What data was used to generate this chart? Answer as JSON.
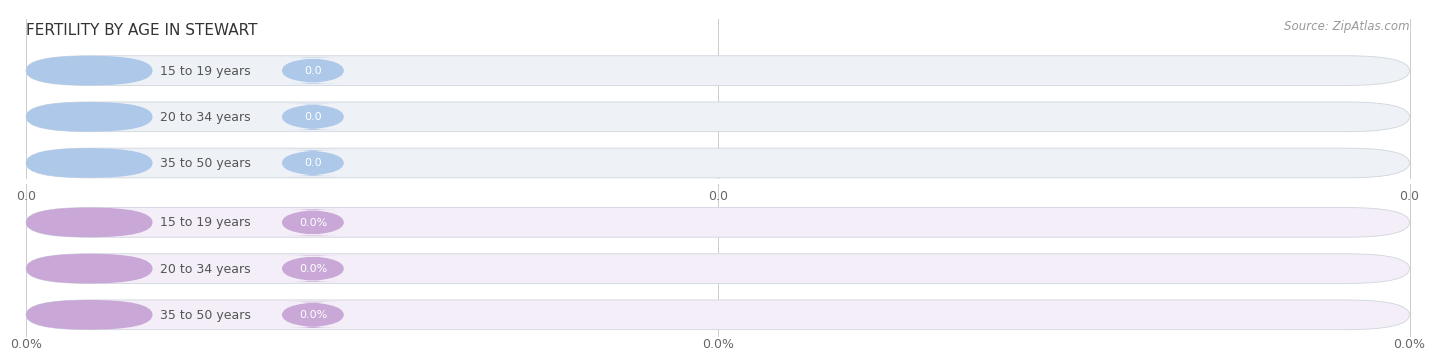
{
  "title": "FERTILITY BY AGE IN STEWART",
  "source": "Source: ZipAtlas.com",
  "top_group": {
    "labels": [
      "15 to 19 years",
      "20 to 34 years",
      "35 to 50 years"
    ],
    "value_labels": [
      "0.0",
      "0.0",
      "0.0"
    ],
    "bar_color": "#adc8e8",
    "bar_bg_color": "#eef1f5",
    "circle_color": "#adc8e8",
    "text_color": "#555555",
    "value_text_color": "#ffffff",
    "x_tick_labels": [
      "0.0",
      "0.0",
      "0.0"
    ]
  },
  "bottom_group": {
    "labels": [
      "15 to 19 years",
      "20 to 34 years",
      "35 to 50 years"
    ],
    "value_labels": [
      "0.0%",
      "0.0%",
      "0.0%"
    ],
    "bar_color": "#c9a8d8",
    "bar_bg_color": "#f3eef7",
    "circle_color": "#c9a8d8",
    "text_color": "#555555",
    "value_text_color": "#ffffff",
    "x_tick_labels": [
      "0.0%",
      "0.0%",
      "0.0%"
    ]
  },
  "bg_color": "#ffffff",
  "title_fontsize": 11,
  "label_fontsize": 9,
  "value_fontsize": 8,
  "tick_fontsize": 9,
  "source_fontsize": 8.5
}
